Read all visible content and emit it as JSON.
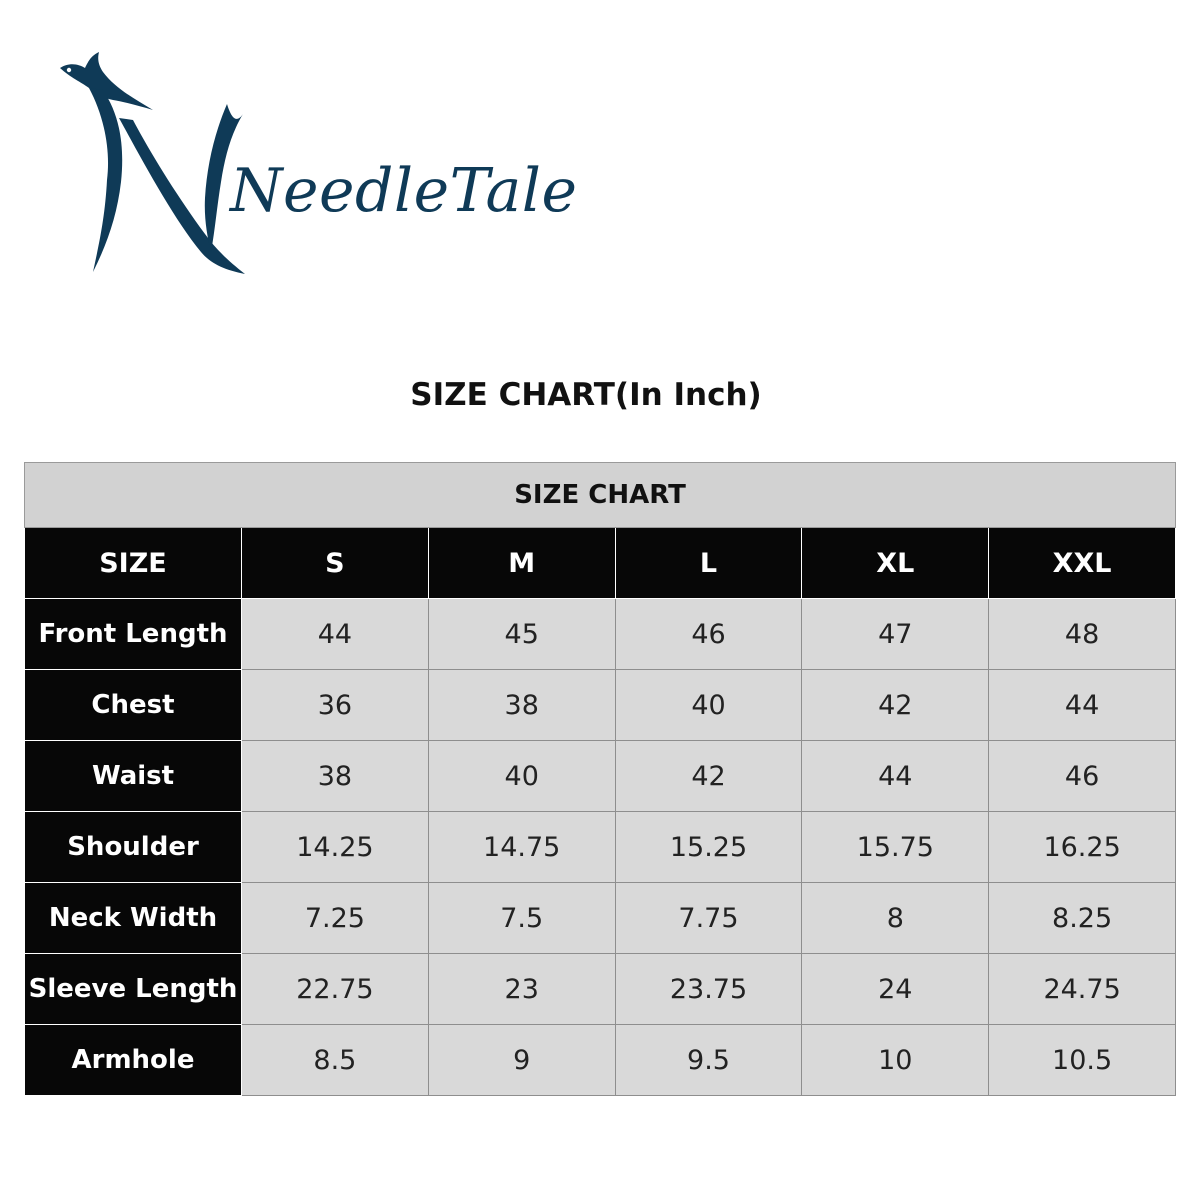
{
  "brand": {
    "name": "NeedleTale",
    "color": "#0f3a57"
  },
  "page_title": "SIZE CHART(In Inch)",
  "size_chart": {
    "caption": "SIZE CHART",
    "corner_label": "SIZE",
    "sizes": [
      "S",
      "M",
      "L",
      "XL",
      "XXL"
    ],
    "rows": [
      {
        "label": "Front Length",
        "values": [
          "44",
          "45",
          "46",
          "47",
          "48"
        ]
      },
      {
        "label": "Chest",
        "values": [
          "36",
          "38",
          "40",
          "42",
          "44"
        ]
      },
      {
        "label": "Waist",
        "values": [
          "38",
          "40",
          "42",
          "44",
          "46"
        ]
      },
      {
        "label": "Shoulder",
        "values": [
          "14.25",
          "14.75",
          "15.25",
          "15.75",
          "16.25"
        ]
      },
      {
        "label": "Neck Width",
        "values": [
          "7.25",
          "7.5",
          "7.75",
          "8",
          "8.25"
        ]
      },
      {
        "label": "Sleeve Length",
        "values": [
          "22.75",
          "23",
          "23.75",
          "24",
          "24.75"
        ]
      },
      {
        "label": "Armhole",
        "values": [
          "8.5",
          "9",
          "9.5",
          "10",
          "10.5"
        ]
      }
    ]
  },
  "colors": {
    "header_bg": "#070707",
    "caption_bg": "#d2d2d2",
    "cell_bg": "#d9d9d9"
  }
}
